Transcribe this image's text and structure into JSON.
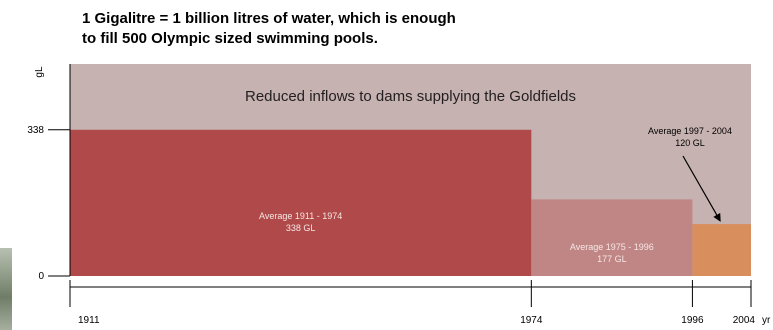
{
  "note": {
    "line1": "1 Gigalitre = 1 billion litres of water, which is enough",
    "line2": "to fill 500 Olympic sized swimming pools."
  },
  "chart_data": {
    "type": "bar",
    "title": "Reduced inflows to dams supplying the Goldfields",
    "ylabel": "gL",
    "xlabel": "yr",
    "ylim": [
      0,
      490
    ],
    "xlim": [
      1911,
      2004
    ],
    "y_ticks": [
      0,
      338
    ],
    "x_ticks": [
      1911,
      1974,
      1996,
      2004
    ],
    "grid": false,
    "legend": "none",
    "bars": [
      {
        "x_start": 1911,
        "x_end": 1974,
        "value": 338,
        "label_line1": "Average 1911 - 1974",
        "label_line2": "338 GL",
        "color": "#b04a4a"
      },
      {
        "x_start": 1974,
        "x_end": 1996,
        "value": 177,
        "label_line1": "Average 1975 - 1996",
        "label_line2": "177 GL",
        "color": "#c08686"
      },
      {
        "x_start": 1996,
        "x_end": 2004,
        "value": 120,
        "label_line1": "Average 1997 - 2004",
        "label_line2": "120 GL",
        "color": "#d98e5d"
      }
    ],
    "colors": {
      "background_band": "#c6b2b0",
      "axis": "#000000"
    }
  }
}
